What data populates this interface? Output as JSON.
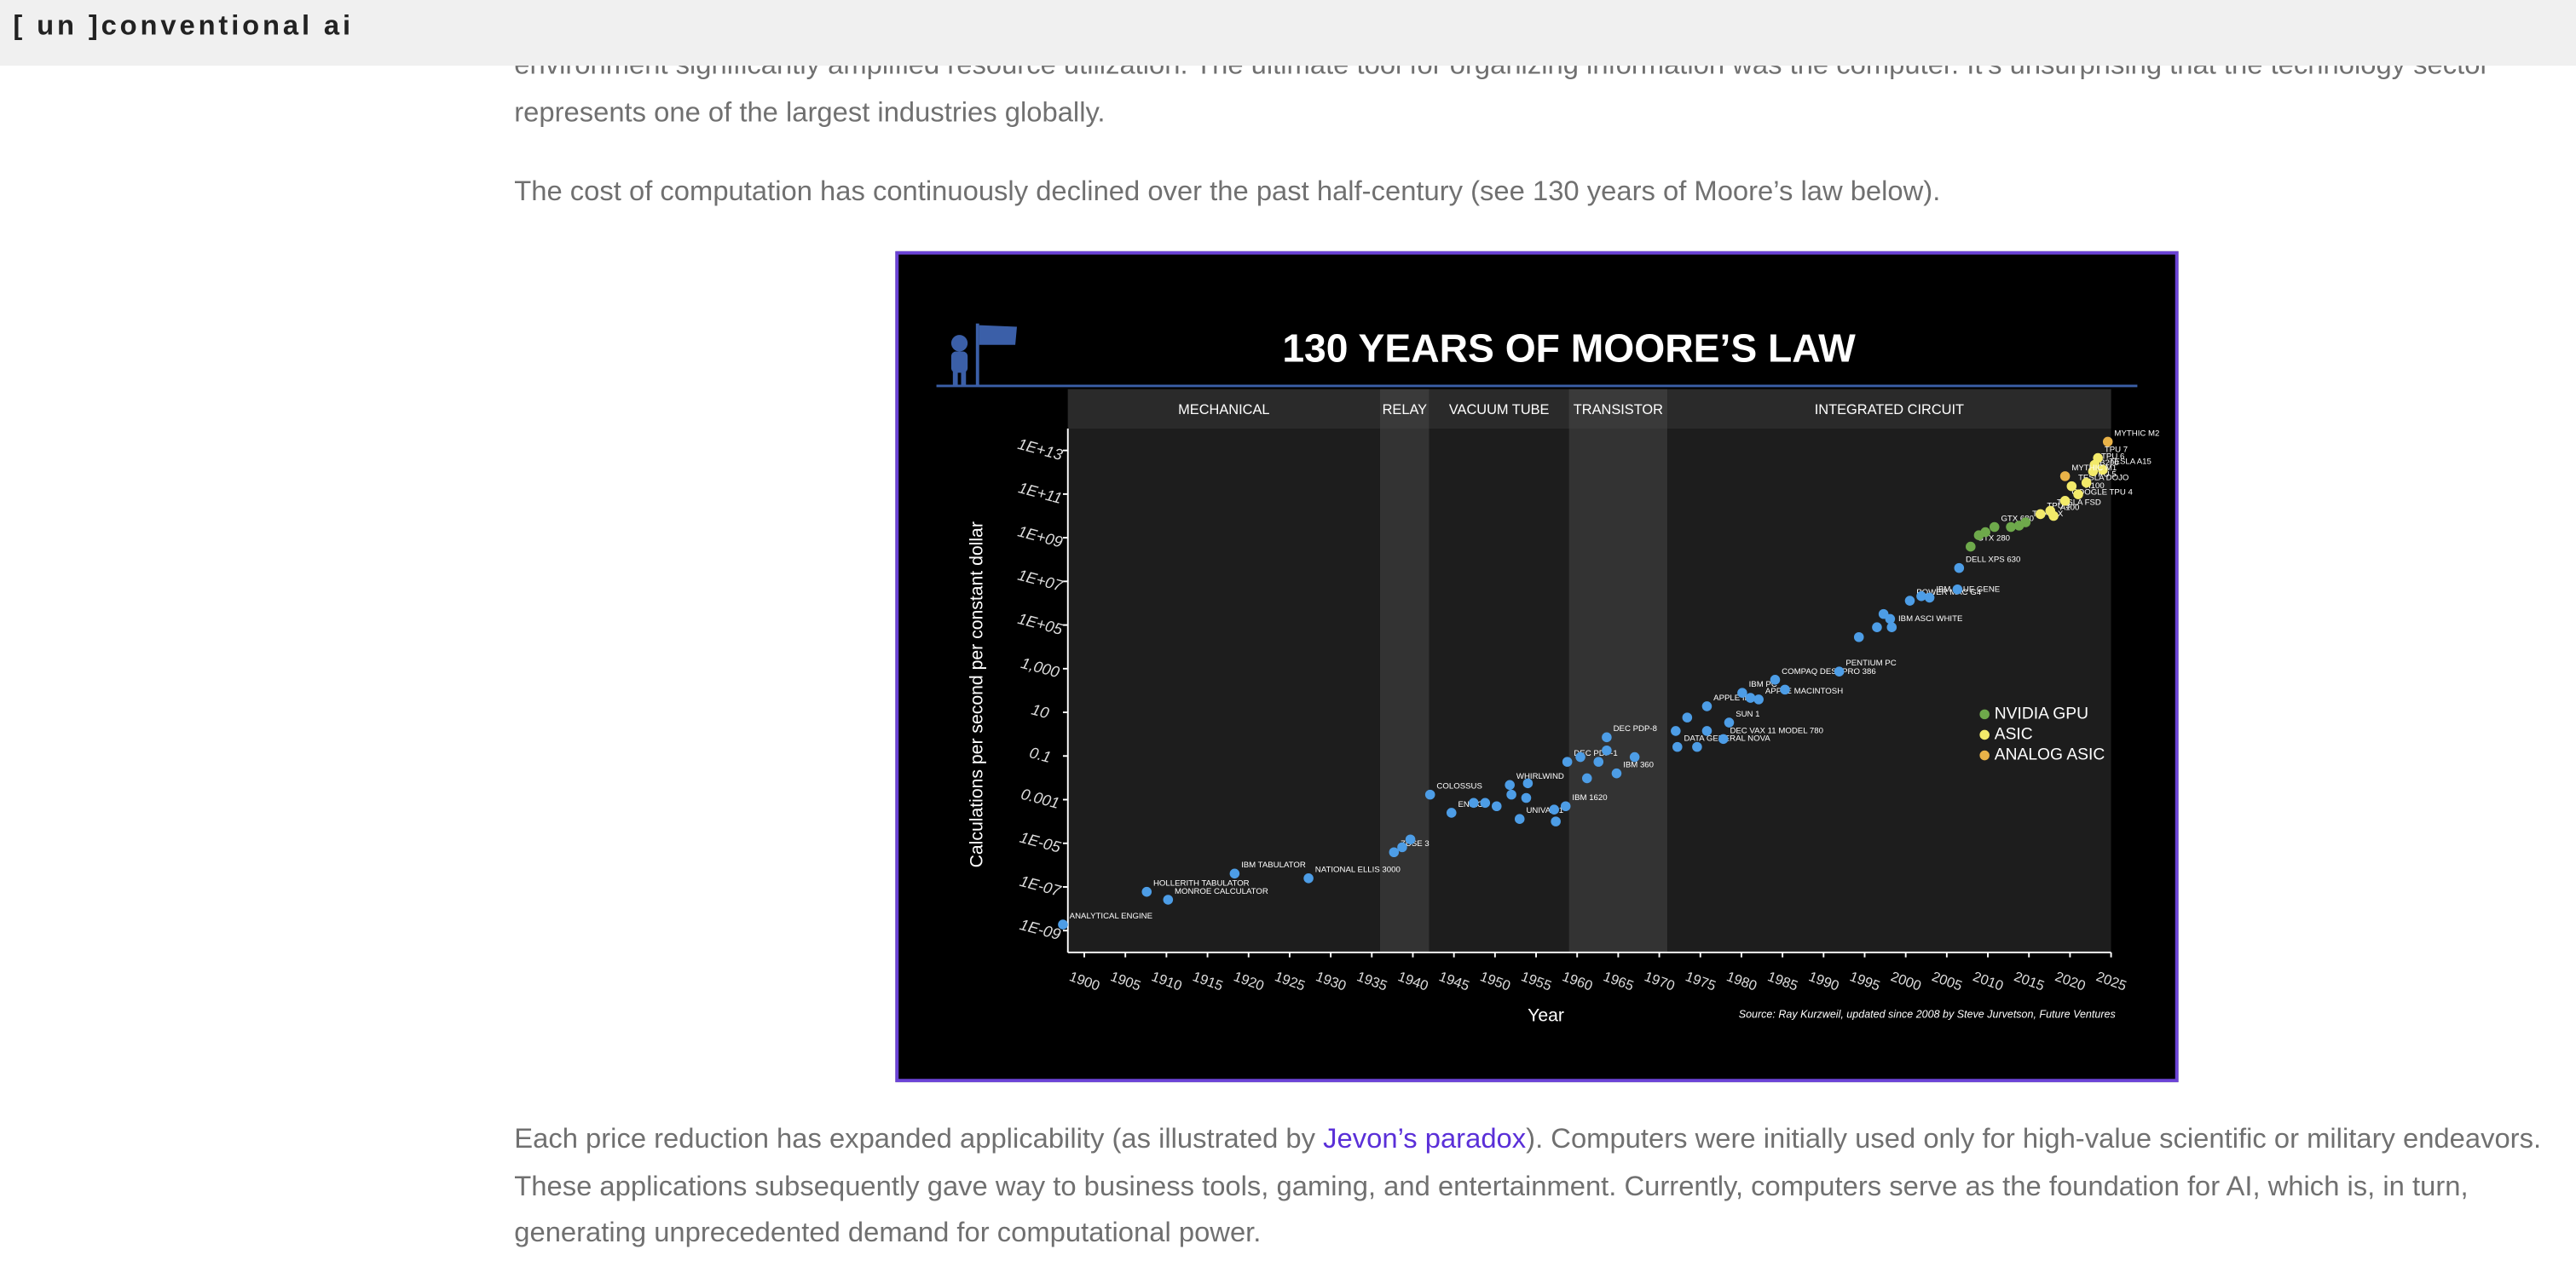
{
  "header": {
    "brand": "[ un ]conventional ai"
  },
  "article": {
    "paragraphs": [
      "environment significantly amplified resource utilization. The ultimate tool for organizing information was the computer. It’s unsurprising that the technology sector represents one of the largest industries globally.",
      "The cost of computation has continuously declined over the past half-century (see 130 years of Moore’s law below)."
    ],
    "closing": {
      "before": "Each price reduction has expanded applicability (as illustrated by ",
      "link": "Jevon’s paradox",
      "after": "). Computers were initially used only for high-value scientific or military endeavors. These applications subsequently gave way to business tools, gaming, and entertainment. Currently, computers serve as the foundation for AI, which is, in turn, generating unprecedented demand for computational power."
    }
  },
  "chart_data": {
    "type": "scatter",
    "title": "130 YEARS OF MOORE’S LAW",
    "xlabel": "Year",
    "ylabel": "Calculations per second per constant dollar",
    "source": "Source: Ray Kurzweil, updated since 2008 by Steve Jurvetson, Future Ventures",
    "eras": [
      {
        "name": "MECHANICAL",
        "start": 1898,
        "end": 1936
      },
      {
        "name": "RELAY",
        "start": 1936,
        "end": 1942
      },
      {
        "name": "VACUUM TUBE",
        "start": 1942,
        "end": 1959
      },
      {
        "name": "TRANSISTOR",
        "start": 1959,
        "end": 1971
      },
      {
        "name": "INTEGRATED CIRCUIT",
        "start": 1971,
        "end": 2025
      }
    ],
    "xlim": [
      1898,
      2025
    ],
    "ylim": [
      1e-10,
      100000000000000.0
    ],
    "log_y": true,
    "legend": "right",
    "xticks": [
      1900,
      1905,
      1910,
      1915,
      1920,
      1925,
      1930,
      1935,
      1940,
      1945,
      1950,
      1955,
      1960,
      1965,
      1970,
      1975,
      1980,
      1985,
      1990,
      1995,
      2000,
      2005,
      2010,
      2015,
      2020,
      2025
    ],
    "yticks": [
      {
        "value": 1e-09,
        "label": "1E-09"
      },
      {
        "value": 1e-07,
        "label": "1E-07"
      },
      {
        "value": 1e-05,
        "label": "1E-05"
      },
      {
        "value": 0.001,
        "label": "0.001"
      },
      0.1,
      10,
      {
        "value": 1000,
        "label": "1,000"
      },
      {
        "value": 100000.0,
        "label": "1E+05"
      },
      {
        "value": 10000000.0,
        "label": "1E+07"
      },
      {
        "value": 1000000000.0,
        "label": "1E+09"
      },
      {
        "value": 100000000000.0,
        "label": "1E+11"
      },
      {
        "value": 10000000000000.0,
        "label": "1E+13"
      }
    ],
    "series": [
      {
        "color": "#4d9de6",
        "x": [
          1897.4,
          1907.6,
          1910.2,
          1918.3,
          1927.3,
          1937.7,
          1938.7,
          1939.7,
          1942.1,
          1944.7,
          1947.4,
          1948.8,
          1950.2,
          1951.8,
          1952.0,
          1953.0,
          1953.8,
          1954.0,
          1957.2,
          1957.4,
          1958.6,
          1958.8,
          1960.4,
          1961.2,
          1962.6,
          1963.6,
          1963.6,
          1964.8,
          1967.0,
          1972.0,
          1972.2,
          1973.4,
          1974.6,
          1975.8,
          1975.8,
          1977.8,
          1978.5,
          1980.1,
          1981.1,
          1982.1,
          1984.1,
          1985.3,
          1991.9,
          1994.3,
          1996.5,
          1997.3,
          1998.3,
          1998.1,
          2000.5,
          2001.9,
          2002.9,
          2006.3,
          2006.5
        ],
        "values": [
          1.9e-09,
          6e-08,
          2.6e-08,
          4.1e-07,
          2.5e-07,
          3.9e-06,
          6.6e-06,
          1.5e-05,
          0.0017,
          0.00025,
          0.00071,
          0.00071,
          0.0005,
          0.0047,
          0.0017,
          0.00013,
          0.0012,
          0.0056,
          0.00035,
          0.0001,
          0.0005,
          0.054,
          0.089,
          0.0095,
          0.054,
          0.18,
          0.72,
          0.016,
          0.089,
          1.4,
          0.26,
          5.8,
          0.26,
          1.4,
          19,
          0.6,
          3.4,
          78,
          46,
          39,
          310,
          110,
          740,
          28000,
          79000,
          320000,
          79000,
          190000,
          1300000,
          2100000,
          1800000,
          4300000,
          41000000
        ],
        "labels": [
          "ANALYTICAL ENGINE",
          "HOLLERITH TABULATOR",
          "MONROE CALCULATOR",
          "IBM TABULATOR",
          "NATIONAL ELLIS 3000",
          "ZUSE 3",
          null,
          null,
          "COLOSSUS",
          "ENIAC",
          null,
          null,
          null,
          "WHIRLWIND",
          null,
          "UNIVAC 1",
          null,
          null,
          null,
          null,
          "IBM 1620",
          "DEC PDP-1",
          null,
          null,
          null,
          null,
          "DEC PDP-8",
          "IBM 360",
          null,
          null,
          "DATA GENERAL NOVA",
          null,
          null,
          null,
          "APPLE II",
          "DEC VAX 11 MODEL 780",
          "SUN 1",
          "IBM PC",
          null,
          "APPLE MACINTOSH",
          "COMPAQ DESKPRO 386",
          null,
          "PENTIUM PC",
          null,
          null,
          null,
          "IBM ASCI WHITE",
          null,
          "POWER MAC G4",
          null,
          "IBM BLUE GENE",
          null,
          "DELL XPS 630"
        ]
      },
      {
        "name": "NVIDIA GPU",
        "color": "#6ea94b",
        "x": [
          2007.9,
          2008.9,
          2009.7,
          2010.8,
          2012.8,
          2013.8,
          2014.6
        ],
        "values": [
          390000000.0,
          1300000000.0,
          1800000000.0,
          3100000000.0,
          3100000000.0,
          3600000000.0,
          5100000000.0
        ],
        "labels": [
          "GTX 280",
          null,
          null,
          "GTX 680",
          null,
          null,
          "TITAN X"
        ]
      },
      {
        "name": "ASIC",
        "color": "#f3ea6a",
        "x": [
          2016.4,
          2017.6,
          2018.0,
          2019.4,
          2020.2,
          2021.0,
          2022.0,
          2022.8,
          2023.0,
          2023.4,
          2024.0
        ],
        "values": [
          12000000000.0,
          17000000000.0,
          10000000000.0,
          49000000000.0,
          230000000000.0,
          98000000000.0,
          330000000000.0,
          1100000000000.0,
          2200000000000.0,
          4500000000000.0,
          1300000000000.0
        ],
        "labels": [
          "TPU 3",
          "TESLA FSD",
          "A100",
          "GOOGLE TPU 4",
          "TESLA DOJO",
          "H100",
          "TPU 5",
          "B200",
          "TPU 6",
          "TPU 7",
          "TESLA A15"
        ]
      },
      {
        "name": "ANALOG ASIC",
        "color": "#e9b248",
        "x": [
          2019.4,
          2024.6
        ],
        "values": [
          660000000000.0,
          25000000000000.0
        ],
        "labels": [
          "MYTHIC M1",
          "MYTHIC M2"
        ]
      }
    ]
  }
}
